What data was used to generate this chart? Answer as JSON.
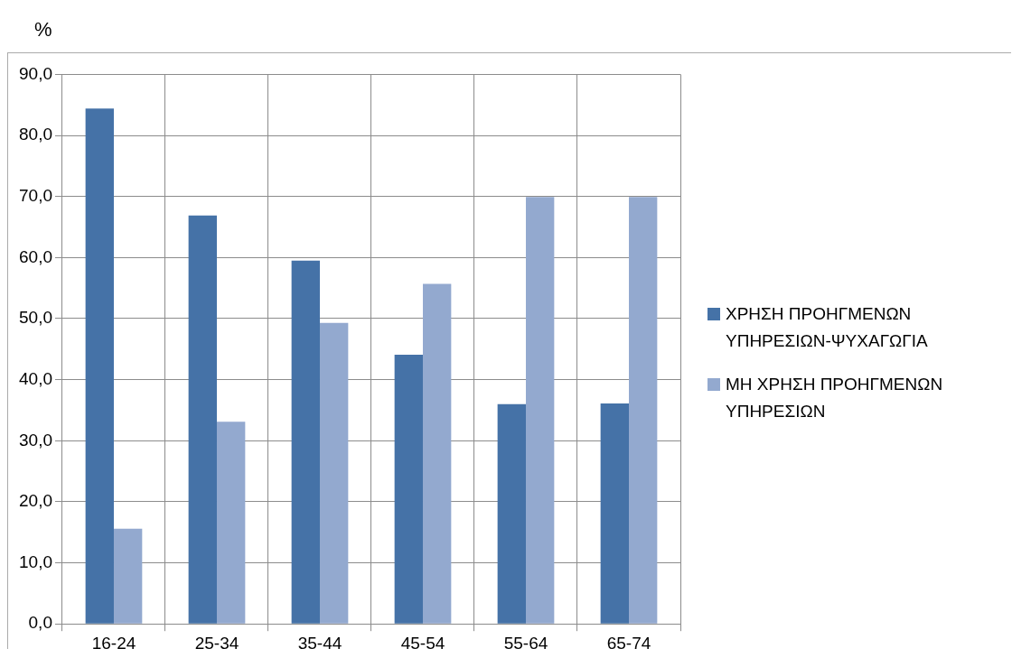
{
  "chart_data": {
    "type": "bar",
    "ylabel": "%",
    "categories": [
      "16-24",
      "25-34",
      "35-44",
      "45-54",
      "55-64",
      "65-74"
    ],
    "series": [
      {
        "name": "ΧΡΗΣΗ ΠΡΟΗΓΜΕΝΩΝ ΥΠΗΡΕΣΙΩΝ-ΨΥΧΑΓΩΓΙΑ",
        "color": "#4572a7",
        "values": [
          84.4,
          66.9,
          59.5,
          44.1,
          36.0,
          36.1
        ]
      },
      {
        "name": "ΜΗ ΧΡΗΣΗ ΠΡΟΗΓΜΕΝΩΝ ΥΠΗΡΕΣΙΩΝ",
        "color": "#93a9cf",
        "values": [
          15.6,
          33.1,
          49.3,
          55.7,
          69.9,
          69.9
        ]
      }
    ],
    "ylim": [
      0,
      90
    ],
    "yticks": [
      {
        "value": 0,
        "label": "0,0"
      },
      {
        "value": 10,
        "label": "10,0"
      },
      {
        "value": 20,
        "label": "20,0"
      },
      {
        "value": 30,
        "label": "30,0"
      },
      {
        "value": 40,
        "label": "40,0"
      },
      {
        "value": 50,
        "label": "50,0"
      },
      {
        "value": 60,
        "label": "60,0"
      },
      {
        "value": 70,
        "label": "70,0"
      },
      {
        "value": 80,
        "label": "80,0"
      },
      {
        "value": 90,
        "label": "90,0"
      }
    ],
    "grid": true,
    "legend": "right"
  }
}
